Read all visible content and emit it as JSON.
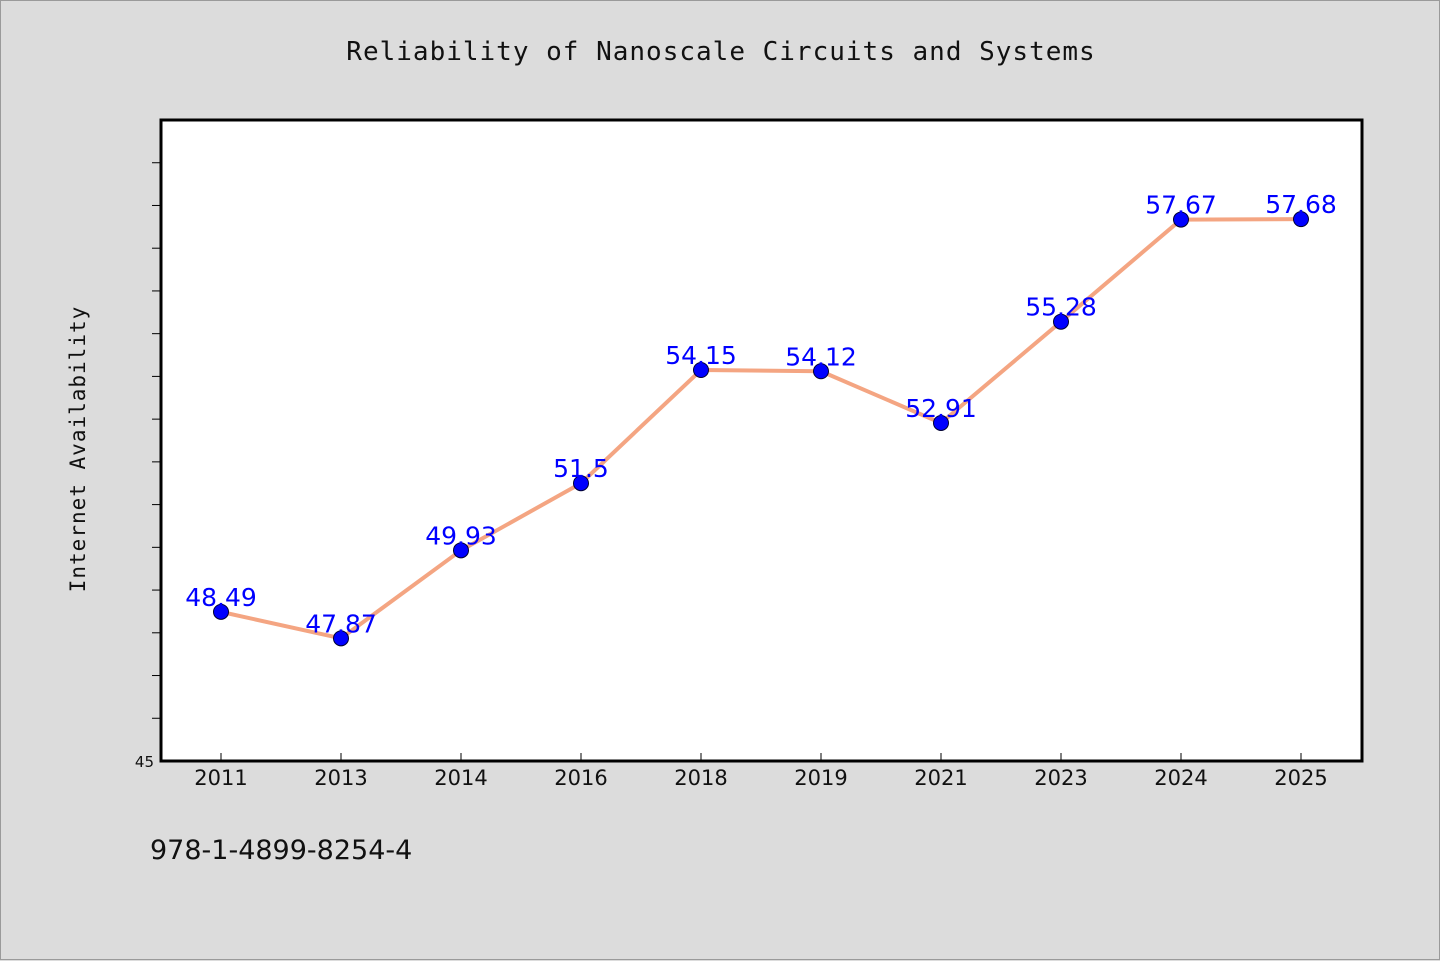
{
  "title": "Reliability of Nanoscale Circuits and Systems",
  "footer_text": "978-1-4899-8254-4",
  "colors": {
    "line": "#f4a582",
    "marker": "#0000ff",
    "data_label": "#0000ff",
    "background": "#dcdcdc",
    "plot_background": "#ffffff"
  },
  "chart_data": {
    "type": "line",
    "title": "Reliability of Nanoscale Circuits and Systems",
    "xlabel": "",
    "ylabel": "Internet Availability",
    "categories": [
      "2011",
      "2013",
      "2014",
      "2016",
      "2018",
      "2019",
      "2021",
      "2023",
      "2024",
      "2025"
    ],
    "series": [
      {
        "values": [
          48.49,
          47.87,
          49.93,
          51.5,
          54.15,
          54.12,
          52.91,
          55.28,
          57.67,
          57.68
        ]
      }
    ],
    "data_labels": [
      "48.49",
      "47.87",
      "49.93",
      "51.5",
      "54.15",
      "54.12",
      "52.91",
      "55.28",
      "57.67",
      "57.68"
    ],
    "ylim": [
      45,
      60
    ],
    "y_tick_labels": [
      "45"
    ],
    "grid": false,
    "legend": "none"
  }
}
